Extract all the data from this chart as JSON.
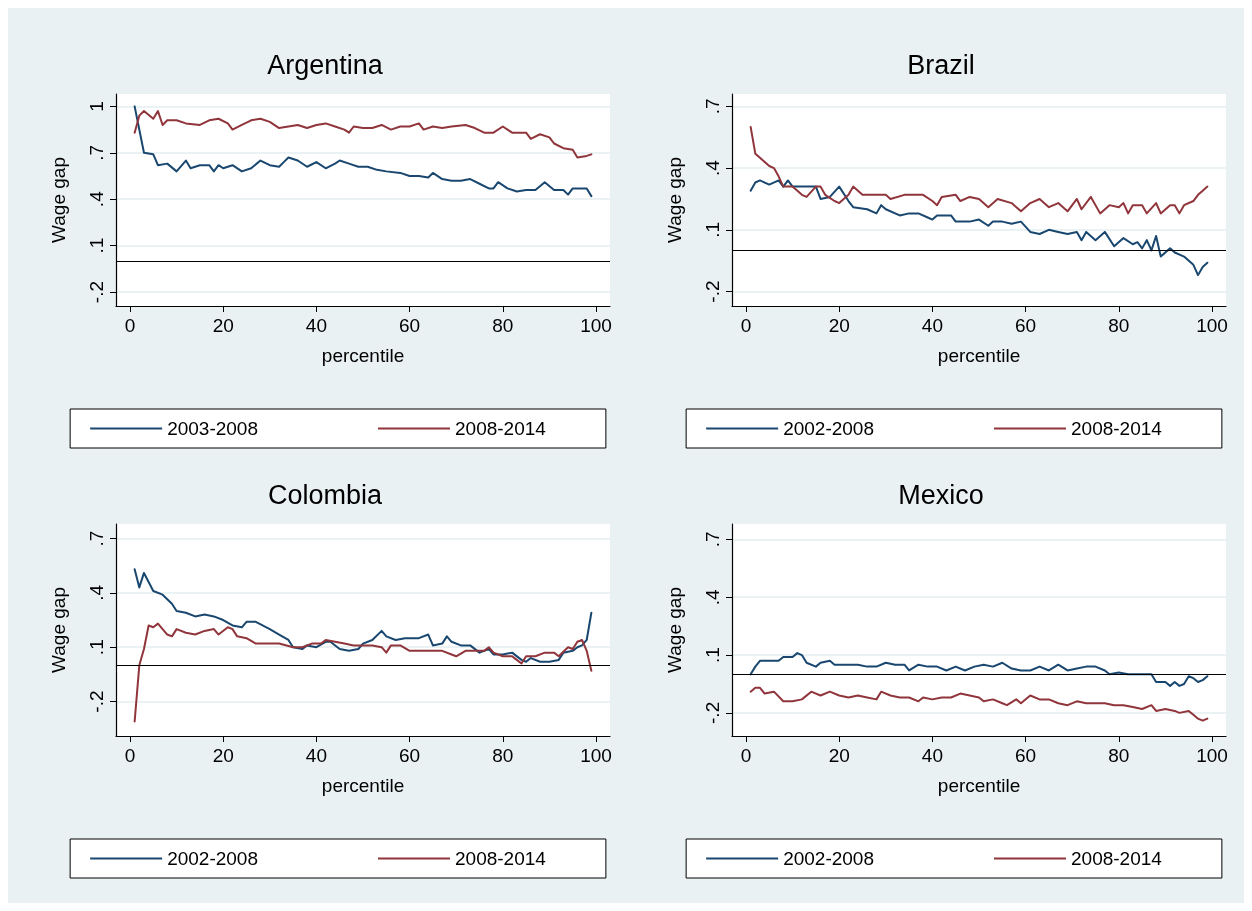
{
  "chart_data": [
    {
      "type": "line",
      "title": "Argentina",
      "xlabel": "percentile",
      "ylabel": "Wage gap",
      "xlim": [
        -3,
        103
      ],
      "xticks": [
        0,
        20,
        40,
        60,
        80,
        100
      ],
      "ylim": [
        -0.29,
        1.08
      ],
      "yticks": [
        {
          "value": -0.2,
          "label": "-.2"
        },
        {
          "value": 0.1,
          "label": ".1"
        },
        {
          "value": 0.4,
          "label": ".4"
        },
        {
          "value": 0.7,
          "label": ".7"
        },
        1
      ],
      "grid": "y",
      "legend": "bottom",
      "line_style": "solid",
      "ref_lines": [
        {
          "axis": "y",
          "value": 0,
          "color": "#000000"
        }
      ],
      "series": [
        {
          "name": "2003-2008",
          "color": "#1a476f",
          "x": [
            1,
            3,
            5,
            6,
            8,
            10,
            12,
            13,
            15,
            17,
            18,
            19,
            20,
            22,
            24,
            26,
            28,
            30,
            32,
            33,
            34,
            36,
            38,
            40,
            42,
            44,
            45,
            47,
            49,
            51,
            53,
            55,
            58,
            60,
            62,
            64,
            65,
            67,
            69,
            71,
            73,
            75,
            77,
            78,
            79,
            81,
            83,
            85,
            87,
            89,
            91,
            93,
            94,
            95,
            97,
            98,
            99
          ],
          "values": [
            1.0,
            0.7,
            0.69,
            0.62,
            0.63,
            0.58,
            0.65,
            0.6,
            0.62,
            0.62,
            0.58,
            0.62,
            0.6,
            0.62,
            0.58,
            0.6,
            0.65,
            0.62,
            0.61,
            0.64,
            0.67,
            0.65,
            0.61,
            0.64,
            0.6,
            0.63,
            0.65,
            0.63,
            0.61,
            0.61,
            0.59,
            0.58,
            0.57,
            0.55,
            0.55,
            0.54,
            0.57,
            0.53,
            0.52,
            0.52,
            0.53,
            0.5,
            0.47,
            0.47,
            0.51,
            0.47,
            0.45,
            0.46,
            0.46,
            0.51,
            0.46,
            0.46,
            0.43,
            0.47,
            0.47,
            0.47,
            0.42
          ]
        },
        {
          "name": "2008-2014",
          "color": "#90353b",
          "x": [
            1,
            2,
            3,
            5,
            6,
            7,
            8,
            10,
            12,
            15,
            17,
            19,
            21,
            22,
            24,
            26,
            28,
            30,
            32,
            34,
            36,
            38,
            40,
            42,
            44,
            46,
            47,
            48,
            50,
            52,
            54,
            56,
            58,
            60,
            62,
            63,
            65,
            67,
            69,
            72,
            74,
            76,
            78,
            80,
            82,
            85,
            86,
            88,
            90,
            91,
            93,
            95,
            96,
            98,
            99
          ],
          "values": [
            0.83,
            0.94,
            0.97,
            0.92,
            0.97,
            0.88,
            0.91,
            0.91,
            0.89,
            0.88,
            0.91,
            0.92,
            0.89,
            0.85,
            0.88,
            0.91,
            0.92,
            0.9,
            0.86,
            0.87,
            0.88,
            0.86,
            0.88,
            0.89,
            0.87,
            0.85,
            0.83,
            0.87,
            0.86,
            0.86,
            0.88,
            0.85,
            0.87,
            0.87,
            0.89,
            0.85,
            0.87,
            0.86,
            0.87,
            0.88,
            0.86,
            0.83,
            0.83,
            0.87,
            0.83,
            0.83,
            0.79,
            0.82,
            0.8,
            0.76,
            0.73,
            0.72,
            0.67,
            0.68,
            0.69
          ]
        }
      ]
    },
    {
      "type": "line",
      "title": "Brazil",
      "xlabel": "percentile",
      "ylabel": "Wage gap",
      "xlim": [
        -3,
        103
      ],
      "xticks": [
        0,
        20,
        40,
        60,
        80,
        100
      ],
      "ylim": [
        -0.27,
        0.76
      ],
      "yticks": [
        {
          "value": -0.2,
          "label": "-.2"
        },
        {
          "value": 0.1,
          "label": ".1"
        },
        {
          "value": 0.4,
          "label": ".4"
        },
        {
          "value": 0.7,
          "label": ".7"
        }
      ],
      "grid": "y",
      "legend": "bottom",
      "line_style": "solid",
      "ref_lines": [
        {
          "axis": "y",
          "value": 0,
          "color": "#000000"
        }
      ],
      "series": [
        {
          "name": "2002-2008",
          "color": "#1a476f",
          "x": [
            1,
            2,
            3,
            5,
            7,
            8,
            9,
            10,
            15,
            16,
            18,
            20,
            22,
            23,
            26,
            28,
            29,
            30,
            33,
            35,
            37,
            39,
            40,
            41,
            44,
            45,
            48,
            50,
            52,
            53,
            55,
            57,
            59,
            61,
            63,
            65,
            67,
            69,
            71,
            72,
            73,
            75,
            77,
            79,
            81,
            83,
            84,
            85,
            86,
            87,
            88,
            89,
            91,
            92,
            94,
            96,
            97,
            98,
            99
          ],
          "values": [
            0.29,
            0.33,
            0.34,
            0.32,
            0.34,
            0.31,
            0.34,
            0.31,
            0.31,
            0.25,
            0.26,
            0.31,
            0.24,
            0.21,
            0.2,
            0.18,
            0.22,
            0.2,
            0.17,
            0.18,
            0.18,
            0.16,
            0.15,
            0.17,
            0.17,
            0.14,
            0.14,
            0.15,
            0.12,
            0.14,
            0.14,
            0.13,
            0.14,
            0.09,
            0.08,
            0.1,
            0.09,
            0.08,
            0.09,
            0.05,
            0.09,
            0.05,
            0.09,
            0.02,
            0.06,
            0.03,
            0.04,
            0.01,
            0.05,
            0.0,
            0.07,
            -0.03,
            0.01,
            -0.01,
            -0.03,
            -0.07,
            -0.12,
            -0.08,
            -0.06
          ]
        },
        {
          "name": "2008-2014",
          "color": "#90353b",
          "x": [
            1,
            2,
            3,
            5,
            6,
            7,
            8,
            10,
            12,
            13,
            15,
            16,
            17,
            19,
            20,
            22,
            23,
            25,
            27,
            30,
            31,
            34,
            38,
            40,
            41,
            42,
            45,
            46,
            48,
            50,
            52,
            54,
            57,
            59,
            61,
            63,
            65,
            67,
            69,
            71,
            72,
            74,
            76,
            78,
            80,
            81,
            82,
            83,
            85,
            86,
            88,
            89,
            91,
            92,
            93,
            94,
            96,
            97,
            98,
            99
          ],
          "values": [
            0.6,
            0.47,
            0.45,
            0.41,
            0.4,
            0.36,
            0.31,
            0.31,
            0.27,
            0.26,
            0.31,
            0.31,
            0.27,
            0.24,
            0.23,
            0.27,
            0.31,
            0.27,
            0.27,
            0.27,
            0.25,
            0.27,
            0.27,
            0.24,
            0.22,
            0.26,
            0.27,
            0.24,
            0.26,
            0.25,
            0.21,
            0.25,
            0.23,
            0.19,
            0.23,
            0.25,
            0.21,
            0.23,
            0.19,
            0.25,
            0.2,
            0.26,
            0.18,
            0.22,
            0.21,
            0.23,
            0.18,
            0.22,
            0.22,
            0.18,
            0.23,
            0.18,
            0.22,
            0.22,
            0.18,
            0.22,
            0.24,
            0.27,
            0.29,
            0.31
          ]
        }
      ]
    },
    {
      "type": "line",
      "title": "Colombia",
      "xlabel": "percentile",
      "ylabel": "Wage gap",
      "xlim": [
        -3,
        103
      ],
      "xticks": [
        0,
        20,
        40,
        60,
        80,
        100
      ],
      "ylim": [
        -0.39,
        0.78
      ],
      "yticks": [
        {
          "value": -0.2,
          "label": "-.2"
        },
        {
          "value": 0.1,
          "label": ".1"
        },
        {
          "value": 0.4,
          "label": ".4"
        },
        {
          "value": 0.7,
          "label": ".7"
        }
      ],
      "grid": "y",
      "legend": "bottom",
      "line_style": "solid",
      "ref_lines": [
        {
          "axis": "y",
          "value": 0,
          "color": "#000000"
        }
      ],
      "series": [
        {
          "name": "2002-2008",
          "color": "#1a476f",
          "x": [
            1,
            2,
            3,
            4,
            5,
            7,
            9,
            10,
            12,
            14,
            16,
            18,
            20,
            22,
            24,
            25,
            27,
            30,
            32,
            34,
            35,
            37,
            38,
            40,
            42,
            43,
            45,
            47,
            49,
            50,
            52,
            54,
            55,
            57,
            59,
            62,
            64,
            65,
            67,
            68,
            69,
            71,
            73,
            75,
            77,
            78,
            80,
            82,
            84,
            85,
            86,
            88,
            90,
            92,
            93,
            95,
            96,
            97,
            98,
            99
          ],
          "values": [
            0.53,
            0.43,
            0.51,
            0.46,
            0.41,
            0.39,
            0.34,
            0.3,
            0.29,
            0.27,
            0.28,
            0.27,
            0.25,
            0.22,
            0.21,
            0.24,
            0.24,
            0.2,
            0.17,
            0.14,
            0.1,
            0.09,
            0.11,
            0.1,
            0.13,
            0.13,
            0.09,
            0.08,
            0.09,
            0.12,
            0.14,
            0.19,
            0.16,
            0.14,
            0.15,
            0.15,
            0.17,
            0.11,
            0.12,
            0.16,
            0.13,
            0.11,
            0.11,
            0.07,
            0.09,
            0.06,
            0.06,
            0.07,
            0.03,
            0.02,
            0.04,
            0.02,
            0.02,
            0.03,
            0.07,
            0.08,
            0.1,
            0.11,
            0.14,
            0.29
          ]
        },
        {
          "name": "2008-2014",
          "color": "#90353b",
          "x": [
            1,
            2,
            3,
            4,
            5,
            6,
            8,
            9,
            10,
            12,
            14,
            16,
            18,
            19,
            21,
            22,
            23,
            25,
            27,
            29,
            32,
            35,
            37,
            39,
            41,
            42,
            44,
            46,
            48,
            50,
            52,
            54,
            55,
            56,
            58,
            60,
            62,
            64,
            66,
            67,
            69,
            70,
            72,
            74,
            76,
            77,
            78,
            80,
            82,
            83,
            84,
            85,
            87,
            89,
            91,
            92,
            94,
            95,
            96,
            97,
            98,
            99
          ],
          "values": [
            -0.31,
            0.0,
            0.09,
            0.22,
            0.21,
            0.23,
            0.17,
            0.16,
            0.2,
            0.18,
            0.17,
            0.19,
            0.2,
            0.17,
            0.21,
            0.2,
            0.16,
            0.15,
            0.12,
            0.12,
            0.12,
            0.1,
            0.1,
            0.12,
            0.12,
            0.14,
            0.13,
            0.12,
            0.11,
            0.11,
            0.11,
            0.1,
            0.07,
            0.11,
            0.11,
            0.08,
            0.08,
            0.08,
            0.08,
            0.08,
            0.06,
            0.05,
            0.08,
            0.08,
            0.08,
            0.1,
            0.07,
            0.05,
            0.05,
            0.03,
            0.01,
            0.05,
            0.05,
            0.07,
            0.07,
            0.05,
            0.1,
            0.09,
            0.13,
            0.14,
            0.08,
            -0.03
          ]
        }
      ]
    },
    {
      "type": "line",
      "title": "Mexico",
      "xlabel": "percentile",
      "ylabel": "Wage gap",
      "xlim": [
        -3,
        103
      ],
      "xticks": [
        0,
        20,
        40,
        60,
        80,
        100
      ],
      "ylim": [
        -0.32,
        0.78
      ],
      "yticks": [
        {
          "value": -0.2,
          "label": "-.2"
        },
        {
          "value": 0.1,
          "label": ".1"
        },
        {
          "value": 0.4,
          "label": ".4"
        },
        {
          "value": 0.7,
          "label": ".7"
        }
      ],
      "grid": "y",
      "legend": "bottom",
      "line_style": "solid",
      "ref_lines": [
        {
          "axis": "y",
          "value": 0,
          "color": "#000000"
        }
      ],
      "series": [
        {
          "name": "2002-2008",
          "color": "#1a476f",
          "x": [
            1,
            2,
            3,
            5,
            7,
            8,
            10,
            11,
            12,
            13,
            15,
            16,
            18,
            19,
            21,
            24,
            26,
            28,
            30,
            32,
            34,
            35,
            37,
            39,
            41,
            43,
            45,
            47,
            49,
            51,
            53,
            55,
            57,
            59,
            61,
            63,
            65,
            67,
            69,
            71,
            73,
            75,
            77,
            78,
            80,
            82,
            85,
            87,
            88,
            90,
            91,
            92,
            93,
            94,
            95,
            96,
            97,
            98,
            99
          ],
          "values": [
            0.0,
            0.04,
            0.07,
            0.07,
            0.07,
            0.09,
            0.09,
            0.11,
            0.1,
            0.06,
            0.04,
            0.06,
            0.07,
            0.05,
            0.05,
            0.05,
            0.04,
            0.04,
            0.06,
            0.05,
            0.05,
            0.02,
            0.05,
            0.04,
            0.04,
            0.02,
            0.04,
            0.02,
            0.04,
            0.05,
            0.04,
            0.06,
            0.03,
            0.02,
            0.02,
            0.04,
            0.02,
            0.05,
            0.02,
            0.03,
            0.04,
            0.04,
            0.02,
            0.0,
            0.01,
            0.0,
            0.0,
            0.0,
            -0.04,
            -0.04,
            -0.06,
            -0.04,
            -0.06,
            -0.05,
            -0.01,
            -0.02,
            -0.04,
            -0.03,
            -0.01
          ]
        },
        {
          "name": "2008-2014",
          "color": "#90353b",
          "x": [
            1,
            2,
            3,
            4,
            6,
            8,
            10,
            12,
            14,
            16,
            18,
            20,
            22,
            24,
            26,
            28,
            29,
            31,
            33,
            35,
            37,
            38,
            40,
            42,
            44,
            46,
            48,
            50,
            51,
            53,
            55,
            56,
            58,
            59,
            61,
            63,
            65,
            67,
            69,
            71,
            73,
            75,
            77,
            79,
            81,
            83,
            85,
            87,
            88,
            90,
            92,
            93,
            95,
            96,
            97,
            98,
            99
          ],
          "values": [
            -0.09,
            -0.07,
            -0.07,
            -0.1,
            -0.09,
            -0.14,
            -0.14,
            -0.13,
            -0.09,
            -0.11,
            -0.09,
            -0.11,
            -0.12,
            -0.11,
            -0.12,
            -0.13,
            -0.09,
            -0.11,
            -0.12,
            -0.12,
            -0.14,
            -0.12,
            -0.13,
            -0.12,
            -0.12,
            -0.1,
            -0.11,
            -0.12,
            -0.14,
            -0.13,
            -0.15,
            -0.16,
            -0.13,
            -0.15,
            -0.11,
            -0.13,
            -0.13,
            -0.15,
            -0.16,
            -0.14,
            -0.15,
            -0.15,
            -0.15,
            -0.16,
            -0.16,
            -0.17,
            -0.18,
            -0.16,
            -0.19,
            -0.18,
            -0.19,
            -0.2,
            -0.19,
            -0.21,
            -0.23,
            -0.24,
            -0.23
          ]
        }
      ]
    }
  ]
}
